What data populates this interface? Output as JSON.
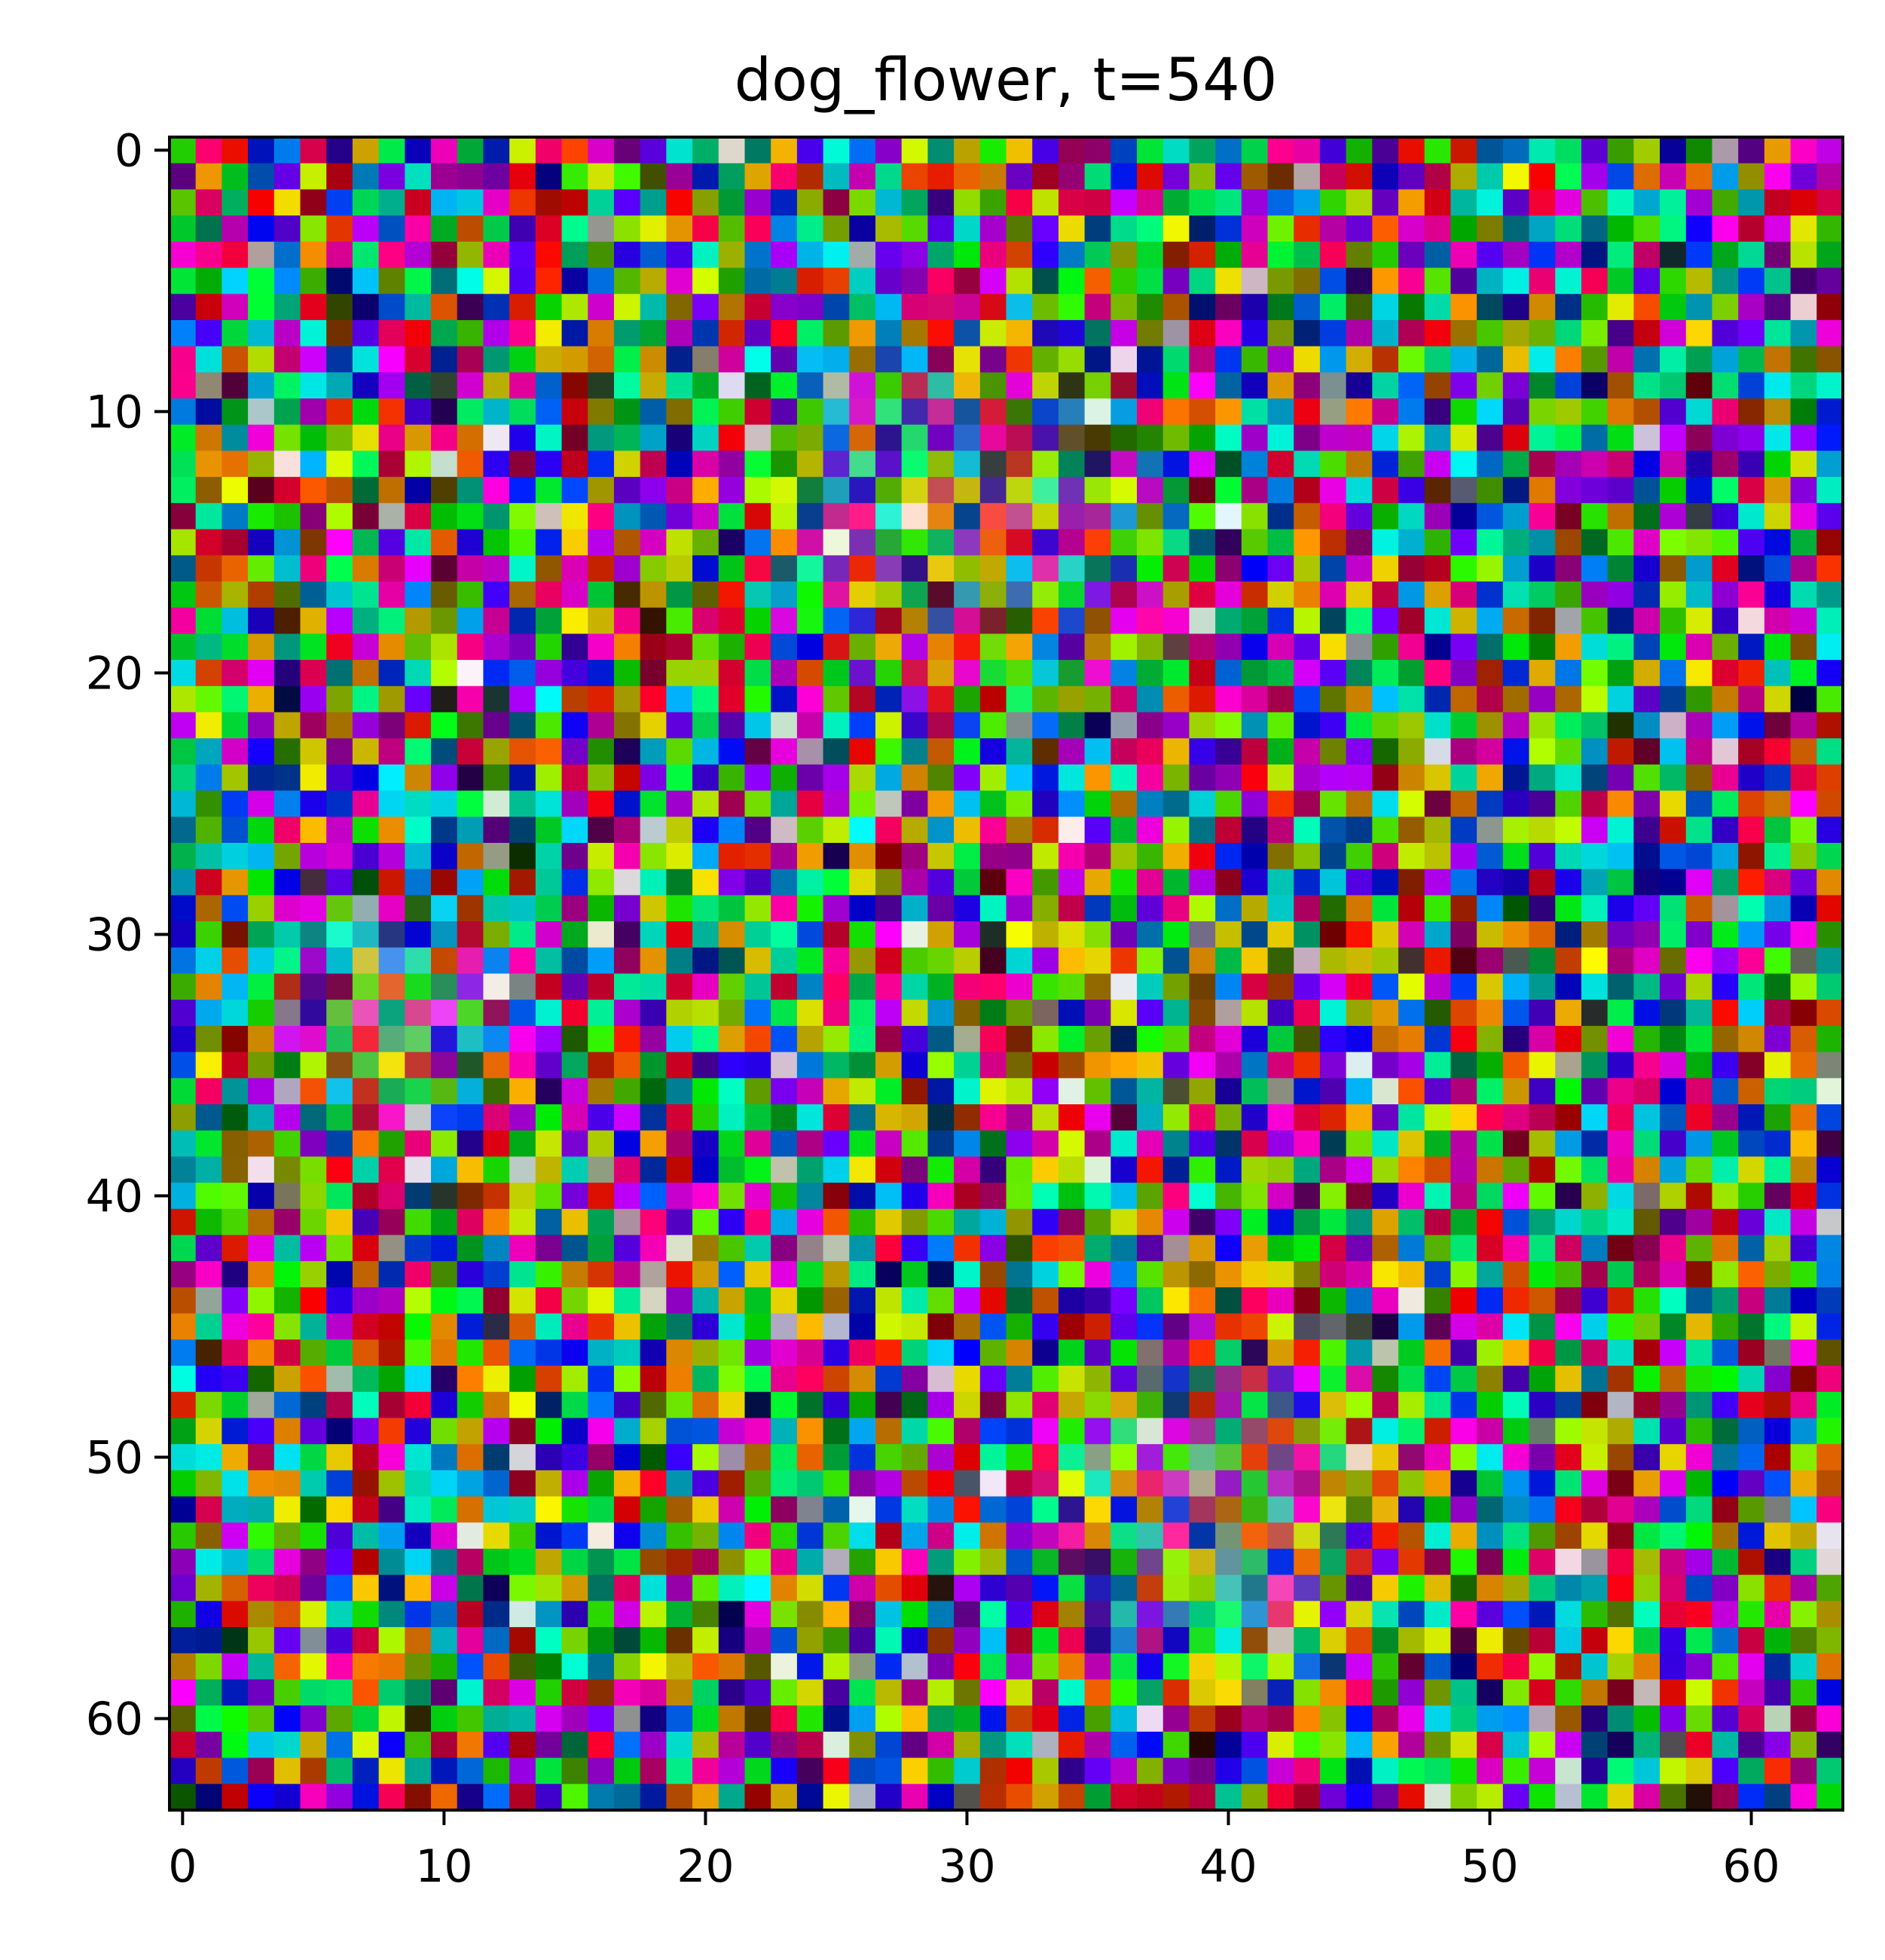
{
  "chart_data": {
    "type": "heatmap",
    "title": "dog_flower, t=540",
    "grid_size": [
      64,
      64
    ],
    "xlim": [
      -0.5,
      63.5
    ],
    "ylim": [
      63.5,
      -0.5
    ],
    "x_ticks": [
      0,
      10,
      20,
      30,
      40,
      50,
      60
    ],
    "x_tick_labels": [
      "0",
      "10",
      "20",
      "30",
      "40",
      "50",
      "60"
    ],
    "y_ticks": [
      0,
      10,
      20,
      30,
      40,
      50,
      60
    ],
    "y_tick_labels": [
      "0",
      "10",
      "20",
      "30",
      "40",
      "50",
      "60"
    ],
    "grid": false,
    "colormap": "rgb",
    "seed": 540,
    "bright_regions": [
      {
        "cx": 30,
        "cy": 14,
        "r": 9,
        "hue": "yellow-orange"
      },
      {
        "cx": 40,
        "cy": 52,
        "r": 8,
        "hue": "yellow"
      },
      {
        "cx": 8,
        "cy": 33,
        "r": 5,
        "hue": "pale"
      }
    ]
  }
}
